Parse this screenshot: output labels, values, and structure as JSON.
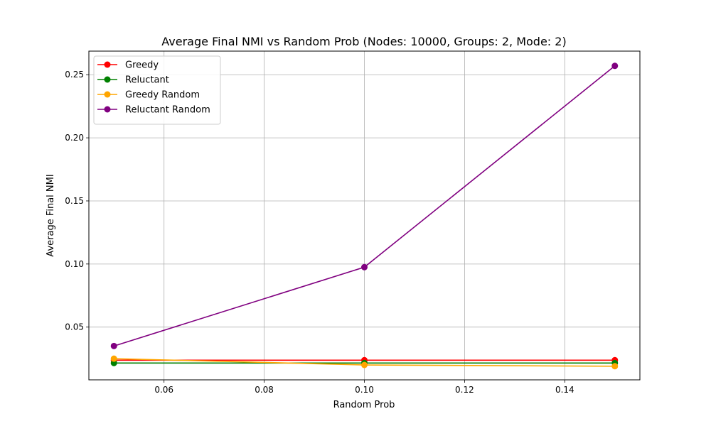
{
  "chart_data": {
    "type": "line",
    "title": "Average Final NMI vs Random Prob (Nodes: 10000, Groups: 2, Mode: 2)",
    "xlabel": "Random Prob",
    "ylabel": "Average Final NMI",
    "x": [
      0.05,
      0.1,
      0.15
    ],
    "xlim": [
      0.045,
      0.155
    ],
    "ylim": [
      0.0082,
      0.2687
    ],
    "xticks": [
      0.06,
      0.08,
      0.1,
      0.12,
      0.14
    ],
    "xtick_labels": [
      "0.06",
      "0.08",
      "0.10",
      "0.12",
      "0.14"
    ],
    "yticks": [
      0.05,
      0.1,
      0.15,
      0.2,
      0.25
    ],
    "ytick_labels": [
      "0.05",
      "0.10",
      "0.15",
      "0.20",
      "0.25"
    ],
    "grid": true,
    "legend_position": "top-left",
    "series": [
      {
        "name": "Greedy",
        "color": "#ff0000",
        "values": [
          0.0238,
          0.0238,
          0.0238
        ]
      },
      {
        "name": "Reluctant",
        "color": "#008000",
        "values": [
          0.0215,
          0.0215,
          0.0215
        ]
      },
      {
        "name": "Greedy Random",
        "color": "#ffa500",
        "values": [
          0.025,
          0.02,
          0.019
        ]
      },
      {
        "name": "Reluctant Random",
        "color": "#800080",
        "values": [
          0.035,
          0.0975,
          0.257
        ]
      }
    ]
  }
}
